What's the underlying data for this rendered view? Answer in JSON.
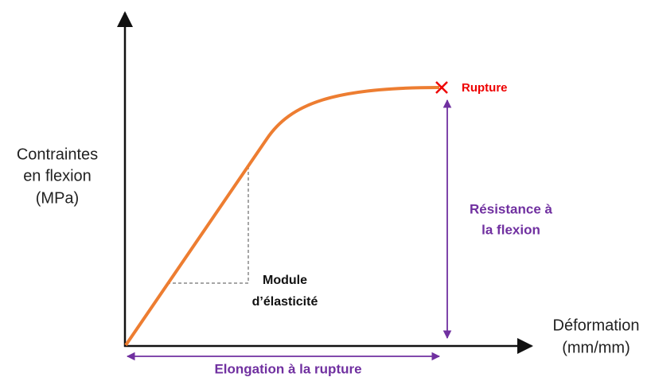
{
  "y_axis_label": [
    "Contraintes",
    "en flexion",
    "(MPa)"
  ],
  "x_axis_label": [
    "Déformation",
    "(mm/mm)"
  ],
  "rupture_label": "Rupture",
  "strength_label": [
    "Résistance à",
    "la flexion"
  ],
  "modulus_label": [
    "Module",
    "d’élasticité"
  ],
  "elongation_label": "Elongation à la rupture"
}
